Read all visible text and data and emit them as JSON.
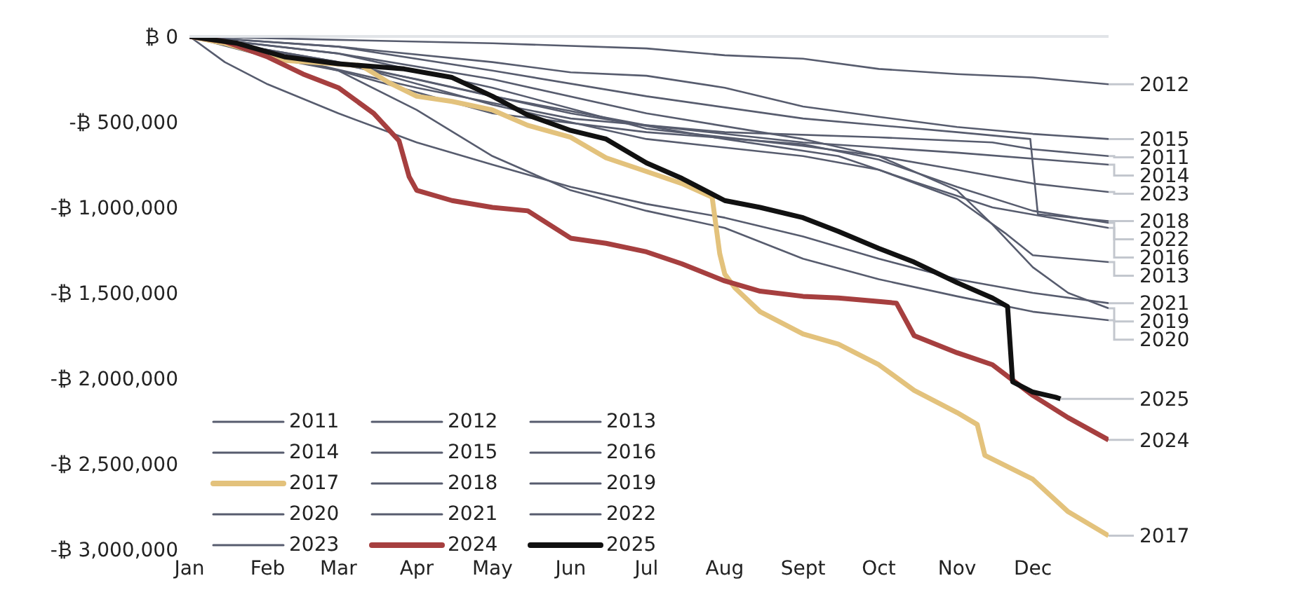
{
  "chart_data": {
    "type": "line",
    "marker": "none",
    "line_style": "solid",
    "grid": false,
    "legend": "bottom left",
    "xlim": [
      "--01-01",
      "--12-31"
    ],
    "xticks": [
      {
        "value": "--01-01",
        "label": "Jan"
      },
      {
        "value": "--02-01",
        "label": "Feb"
      },
      {
        "value": "--03-01",
        "label": "Mar"
      },
      {
        "value": "--04-01",
        "label": "Apr"
      },
      {
        "value": "--05-01",
        "label": "May"
      },
      {
        "value": "--06-01",
        "label": "Jun"
      },
      {
        "value": "--07-01",
        "label": "Jul"
      },
      {
        "value": "--08-01",
        "label": "Aug"
      },
      {
        "value": "--09-01",
        "label": "Sept"
      },
      {
        "value": "--10-01",
        "label": "Oct"
      },
      {
        "value": "--11-01",
        "label": "Nov"
      },
      {
        "value": "--12-01",
        "label": "Dec"
      }
    ],
    "ylim": [
      -3000000,
      0
    ],
    "yticks": [
      {
        "value": 0,
        "label": "₿ 0"
      },
      {
        "value": -500000,
        "label": "-₿ 500,000"
      },
      {
        "value": -1000000,
        "label": "-₿ 1,000,000"
      },
      {
        "value": -1500000,
        "label": "-₿ 1,500,000"
      },
      {
        "value": -2000000,
        "label": "-₿ 2,000,000"
      },
      {
        "value": -2500000,
        "label": "-₿ 2,500,000"
      },
      {
        "value": -3000000,
        "label": "-₿ 3,000,000"
      }
    ],
    "series": [
      {
        "name": "2011",
        "color": "#575c6e",
        "x": [
          "--01-01",
          "--02-01",
          "--04-01",
          "--06-01",
          "--08-01",
          "--10-01",
          "--11-15",
          "--12-01",
          "--12-31"
        ],
        "values": [
          0,
          -100000,
          -300000,
          -480000,
          -560000,
          -590000,
          -620000,
          -660000,
          -700000
        ]
      },
      {
        "name": "2012",
        "color": "#575c6e",
        "x": [
          "--01-01",
          "--03-01",
          "--05-01",
          "--07-01",
          "--08-01",
          "--09-01",
          "--10-01",
          "--11-01",
          "--12-01",
          "--12-31"
        ],
        "values": [
          0,
          -20000,
          -40000,
          -70000,
          -110000,
          -130000,
          -190000,
          -220000,
          -240000,
          -280000
        ]
      },
      {
        "name": "2013",
        "color": "#575c6e",
        "x": [
          "--01-01",
          "--03-01",
          "--05-01",
          "--07-01",
          "--09-01",
          "--10-01",
          "--11-01",
          "--11-20",
          "--12-01",
          "--12-31"
        ],
        "values": [
          0,
          -150000,
          -400000,
          -600000,
          -700000,
          -780000,
          -950000,
          -1150000,
          -1280000,
          -1320000
        ]
      },
      {
        "name": "2014",
        "color": "#575c6e",
        "x": [
          "--01-01",
          "--03-01",
          "--05-01",
          "--07-01",
          "--09-01",
          "--11-01",
          "--12-31"
        ],
        "values": [
          0,
          -150000,
          -350000,
          -520000,
          -620000,
          -680000,
          -750000
        ]
      },
      {
        "name": "2015",
        "color": "#575c6e",
        "x": [
          "--01-01",
          "--03-01",
          "--05-01",
          "--06-01",
          "--07-01",
          "--08-01",
          "--09-01",
          "--10-01",
          "--11-01",
          "--12-01",
          "--12-31"
        ],
        "values": [
          0,
          -60000,
          -150000,
          -210000,
          -230000,
          -300000,
          -410000,
          -470000,
          -530000,
          -570000,
          -600000
        ]
      },
      {
        "name": "2016",
        "color": "#575c6e",
        "x": [
          "--01-01",
          "--02-01",
          "--04-01",
          "--06-01",
          "--08-01",
          "--09-15",
          "--10-15",
          "--11-15",
          "--12-31"
        ],
        "values": [
          0,
          -80000,
          -250000,
          -450000,
          -600000,
          -700000,
          -850000,
          -1000000,
          -1120000
        ]
      },
      {
        "name": "2017",
        "color": "#e3c27c",
        "x": [
          "--01-01",
          "--01-15",
          "--02-08",
          "--03-10",
          "--03-21",
          "--04-01",
          "--04-15",
          "--05-01",
          "--05-15",
          "--06-01",
          "--06-15",
          "--07-01",
          "--07-15",
          "--07-27",
          "--07-30",
          "--08-01",
          "--08-05",
          "--08-15",
          "--09-01",
          "--09-15",
          "--10-01",
          "--10-15",
          "--11-01",
          "--11-09",
          "--11-12",
          "--12-01",
          "--12-15",
          "--12-31"
        ],
        "values": [
          0,
          -40000,
          -140000,
          -170000,
          -270000,
          -350000,
          -380000,
          -430000,
          -520000,
          -590000,
          -710000,
          -790000,
          -860000,
          -940000,
          -1270000,
          -1390000,
          -1470000,
          -1610000,
          -1740000,
          -1800000,
          -1920000,
          -2070000,
          -2200000,
          -2270000,
          -2450000,
          -2590000,
          -2780000,
          -2920000
        ]
      },
      {
        "name": "2018",
        "color": "#575c6e",
        "x": [
          "--01-01",
          "--03-01",
          "--05-01",
          "--07-01",
          "--09-01",
          "--11-01",
          "--11-30",
          "--12-03",
          "--12-31"
        ],
        "values": [
          0,
          -60000,
          -200000,
          -350000,
          -480000,
          -560000,
          -600000,
          -1040000,
          -1080000
        ]
      },
      {
        "name": "2019",
        "color": "#575c6e",
        "x": [
          "--01-01",
          "--03-01",
          "--05-01",
          "--07-01",
          "--09-01",
          "--10-01",
          "--11-01",
          "--11-15",
          "--12-01",
          "--12-15",
          "--12-31"
        ],
        "values": [
          0,
          -100000,
          -250000,
          -450000,
          -600000,
          -700000,
          -900000,
          -1100000,
          -1350000,
          -1500000,
          -1590000
        ]
      },
      {
        "name": "2020",
        "color": "#575c6e",
        "x": [
          "--01-01",
          "--02-01",
          "--03-01",
          "--04-01",
          "--05-01",
          "--06-01",
          "--07-01",
          "--08-01",
          "--09-01",
          "--10-01",
          "--11-01",
          "--12-01",
          "--12-31"
        ],
        "values": [
          0,
          -120000,
          -200000,
          -430000,
          -700000,
          -900000,
          -1020000,
          -1120000,
          -1300000,
          -1420000,
          -1520000,
          -1610000,
          -1660000
        ]
      },
      {
        "name": "2021",
        "color": "#575c6e",
        "x": [
          "--01-01",
          "--01-15",
          "--02-01",
          "--03-01",
          "--04-01",
          "--05-01",
          "--06-01",
          "--07-01",
          "--08-01",
          "--09-01",
          "--10-01",
          "--11-01",
          "--12-01",
          "--12-31"
        ],
        "values": [
          0,
          -150000,
          -280000,
          -450000,
          -620000,
          -750000,
          -880000,
          -980000,
          -1060000,
          -1170000,
          -1300000,
          -1420000,
          -1500000,
          -1560000
        ]
      },
      {
        "name": "2022",
        "color": "#575c6e",
        "x": [
          "--01-01",
          "--03-01",
          "--05-01",
          "--07-01",
          "--09-01",
          "--10-01",
          "--11-01",
          "--12-01",
          "--12-31"
        ],
        "values": [
          0,
          -200000,
          -450000,
          -560000,
          -630000,
          -720000,
          -880000,
          -1020000,
          -1090000
        ]
      },
      {
        "name": "2023",
        "color": "#575c6e",
        "x": [
          "--01-01",
          "--03-01",
          "--05-01",
          "--07-01",
          "--09-01",
          "--10-01",
          "--11-01",
          "--12-01",
          "--12-31"
        ],
        "values": [
          0,
          -100000,
          -300000,
          -540000,
          -640000,
          -700000,
          -780000,
          -860000,
          -910000
        ]
      },
      {
        "name": "2024",
        "color": "#a63f3f",
        "x": [
          "--01-01",
          "--01-15",
          "--02-01",
          "--02-15",
          "--03-01",
          "--03-15",
          "--03-25",
          "--03-29",
          "--04-01",
          "--04-15",
          "--05-01",
          "--05-15",
          "--06-01",
          "--06-15",
          "--07-01",
          "--07-15",
          "--08-01",
          "--08-15",
          "--09-01",
          "--09-15",
          "--10-01",
          "--10-08",
          "--10-15",
          "--11-01",
          "--11-15",
          "--12-01",
          "--12-15",
          "--12-31"
        ],
        "values": [
          0,
          -30000,
          -120000,
          -220000,
          -300000,
          -450000,
          -610000,
          -820000,
          -900000,
          -960000,
          -1000000,
          -1020000,
          -1180000,
          -1210000,
          -1260000,
          -1330000,
          -1430000,
          -1490000,
          -1520000,
          -1530000,
          -1550000,
          -1560000,
          -1750000,
          -1850000,
          -1920000,
          -2100000,
          -2230000,
          -2360000
        ]
      },
      {
        "name": "2025",
        "color": "#111111",
        "x": [
          "--01-01",
          "--01-20",
          "--02-08",
          "--03-01",
          "--03-27",
          "--04-15",
          "--05-01",
          "--05-15",
          "--06-01",
          "--06-15",
          "--07-01",
          "--07-15",
          "--08-01",
          "--08-15",
          "--09-01",
          "--09-15",
          "--10-01",
          "--10-15",
          "--11-01",
          "--11-15",
          "--11-21",
          "--11-23",
          "--12-01",
          "--12-10",
          "--12-12"
        ],
        "values": [
          0,
          -40000,
          -120000,
          -160000,
          -190000,
          -240000,
          -350000,
          -460000,
          -550000,
          -600000,
          -740000,
          -830000,
          -960000,
          -1000000,
          -1060000,
          -1140000,
          -1240000,
          -1320000,
          -1440000,
          -1530000,
          -1580000,
          -2020000,
          -2080000,
          -2110000,
          -2120000
        ]
      }
    ]
  }
}
